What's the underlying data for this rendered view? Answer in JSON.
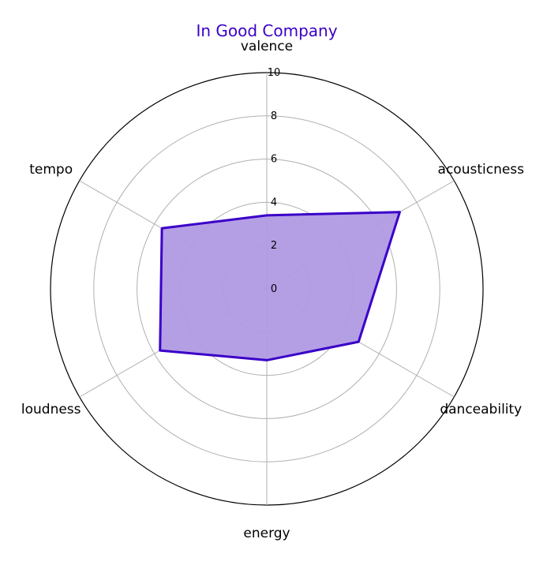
{
  "chart_data": {
    "type": "radar",
    "title": "In Good Company",
    "categories": [
      "valence",
      "acousticness",
      "danceability",
      "energy",
      "loudness",
      "tempo"
    ],
    "series": [
      {
        "values": [
          3.4,
          7.1,
          4.9,
          3.3,
          5.7,
          5.6
        ]
      }
    ],
    "rlim": [
      0,
      10
    ],
    "rticks": [
      "0",
      "2",
      "4",
      "6",
      "8",
      "10"
    ],
    "grid": true,
    "colors": {
      "line": "#3a00c8",
      "fill": "#b09ae4",
      "title": "#3a00c8",
      "grid": "#b0b0b0",
      "outer": "#000000"
    }
  }
}
